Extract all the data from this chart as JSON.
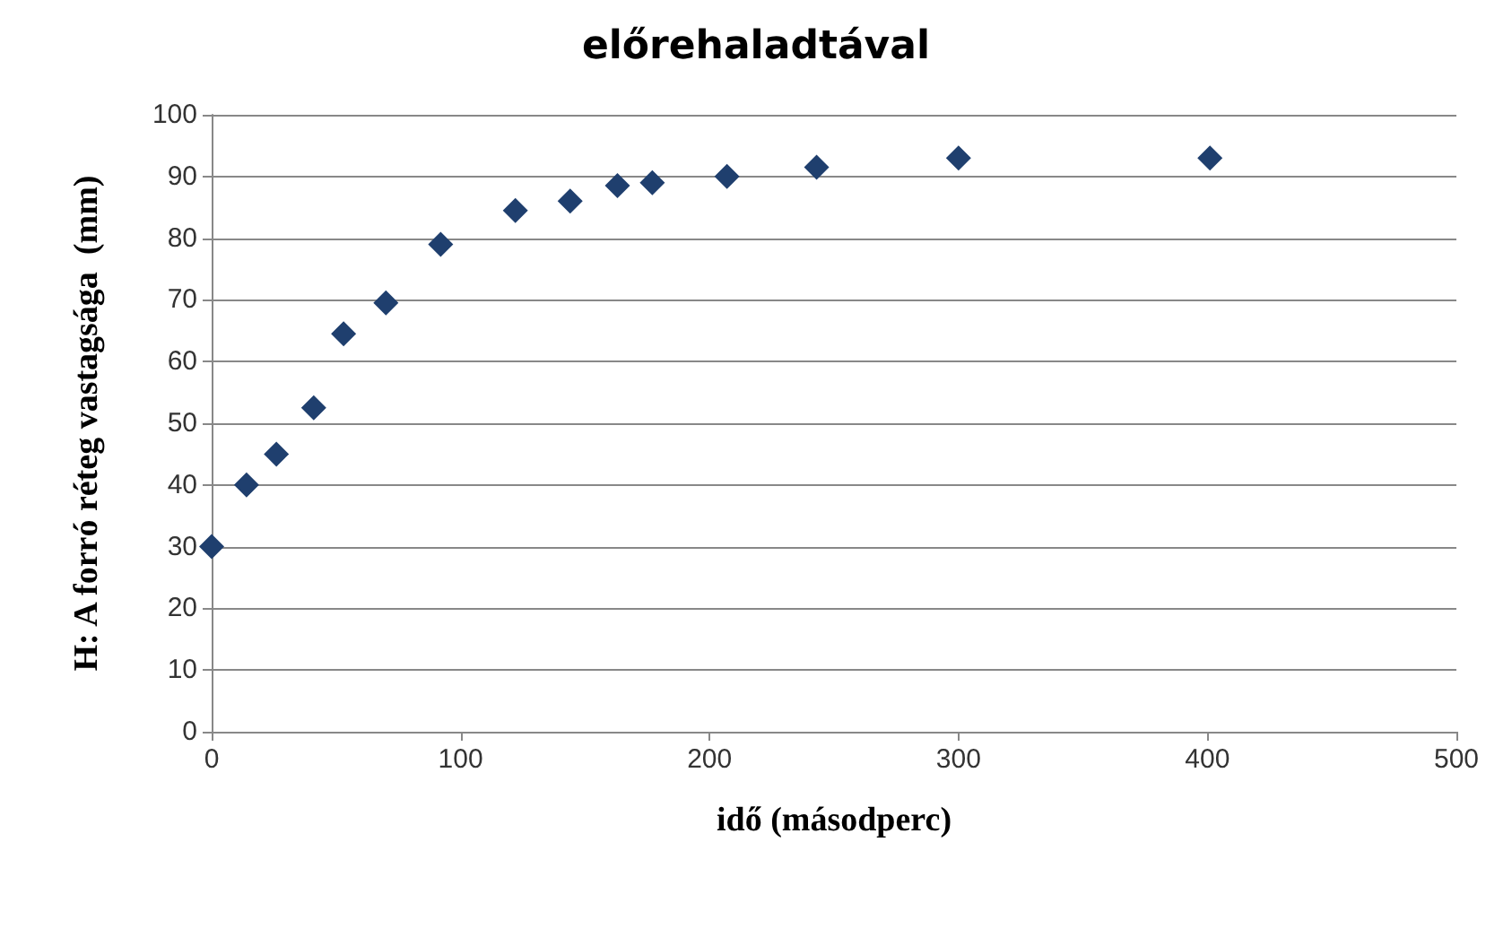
{
  "chart_data": {
    "type": "scatter",
    "title": "előrehaladtával",
    "xlabel": "idő (másodperc)",
    "ylabel": "H: A forró réteg vastagsága  (mm)",
    "x": [
      0,
      14,
      26,
      41,
      53,
      70,
      92,
      122,
      144,
      163,
      177,
      207,
      243,
      300,
      401
    ],
    "series": [
      {
        "color": "#1f3f6e",
        "values": [
          30,
          40,
          45,
          52.5,
          64.5,
          69.5,
          79,
          84.5,
          86,
          88.5,
          89,
          90,
          91.5,
          93,
          93
        ]
      }
    ],
    "xlim": [
      0,
      500
    ],
    "xticks": [
      0,
      100,
      200,
      300,
      400,
      500
    ],
    "ylim": [
      0,
      100
    ],
    "yticks": [
      0,
      10,
      20,
      30,
      40,
      50,
      60,
      70,
      80,
      90,
      100
    ],
    "grid": "y",
    "marker": "diamond"
  }
}
